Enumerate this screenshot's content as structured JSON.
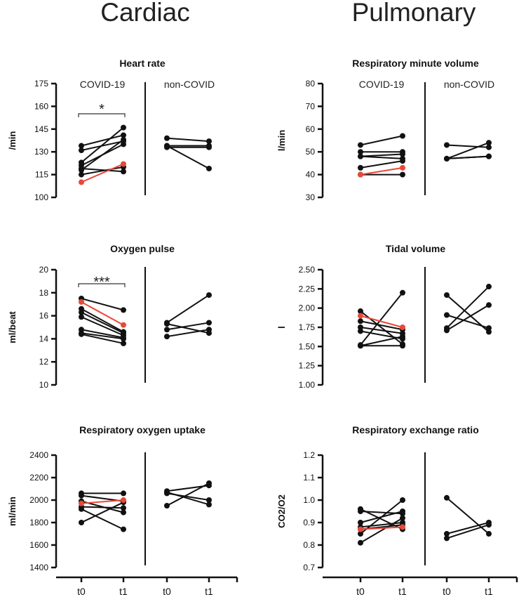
{
  "headers": {
    "left": "Cardiac",
    "right": "Pulmonary"
  },
  "groups": {
    "covid": "COVID-19",
    "noncovid": "non-COVID"
  },
  "time_labels": [
    "t0",
    "t1",
    "t0",
    "t1"
  ],
  "colors": {
    "line": "#111111",
    "highlight": "#e8493a"
  },
  "chart_data": [
    {
      "type": "line",
      "title": "Heart rate",
      "ylabel": "/min",
      "ylim": [
        100,
        175
      ],
      "yticks": [
        100,
        115,
        130,
        145,
        160,
        175
      ],
      "show_groups": true,
      "significance": {
        "label": "*",
        "groups": "COVID-19"
      },
      "covid": [
        [
          123,
          146
        ],
        [
          134,
          141
        ],
        [
          131,
          137
        ],
        [
          121,
          135
        ],
        [
          118,
          138
        ],
        [
          119,
          117
        ],
        [
          115,
          120
        ]
      ],
      "covid_highlight": [
        110,
        122
      ],
      "noncovid": [
        [
          139,
          137
        ],
        [
          134,
          134
        ],
        [
          133,
          133
        ],
        [
          134,
          119
        ]
      ]
    },
    {
      "type": "line",
      "title": "Respiratory minute volume",
      "ylabel": "l/min",
      "ylim": [
        30,
        80
      ],
      "yticks": [
        30,
        40,
        50,
        60,
        70,
        80
      ],
      "show_groups": true,
      "significance": null,
      "covid": [
        [
          53,
          57
        ],
        [
          50,
          50
        ],
        [
          48,
          49
        ],
        [
          48,
          47
        ],
        [
          43,
          46
        ],
        [
          40,
          40
        ]
      ],
      "covid_highlight": [
        40,
        43
      ],
      "noncovid": [
        [
          53,
          52
        ],
        [
          47,
          54
        ],
        [
          47,
          48
        ],
        [
          47,
          48
        ]
      ]
    },
    {
      "type": "line",
      "title": "Oxygen pulse",
      "ylabel": "ml/beat",
      "ylim": [
        10,
        20
      ],
      "yticks": [
        10,
        12,
        14,
        16,
        18,
        20
      ],
      "show_groups": false,
      "significance": {
        "label": "***",
        "groups": "COVID-19"
      },
      "covid": [
        [
          17.5,
          16.5
        ],
        [
          16.6,
          14.6
        ],
        [
          16.3,
          14.5
        ],
        [
          15.9,
          14.3
        ],
        [
          14.8,
          14.1
        ],
        [
          14.5,
          14.0
        ],
        [
          14.4,
          13.6
        ]
      ],
      "covid_highlight": [
        17.2,
        15.2
      ],
      "noncovid": [
        [
          15.4,
          17.8
        ],
        [
          15.3,
          14.5
        ],
        [
          14.8,
          15.4
        ],
        [
          14.2,
          14.8
        ]
      ]
    },
    {
      "type": "line",
      "title": "Tidal volume",
      "ylabel": "l",
      "ylim": [
        1.0,
        2.5
      ],
      "yticks": [
        1.0,
        1.25,
        1.5,
        1.75,
        2.0,
        2.25,
        2.5
      ],
      "ytick_labels": [
        "1.00",
        "1.25",
        "1.50",
        "1.75",
        "2.00",
        "2.25",
        "2.50"
      ],
      "show_groups": false,
      "significance": null,
      "covid": [
        [
          1.96,
          1.53
        ],
        [
          1.83,
          1.72
        ],
        [
          1.75,
          1.67
        ],
        [
          1.7,
          1.6
        ],
        [
          1.52,
          2.2
        ],
        [
          1.51,
          1.63
        ],
        [
          1.51,
          1.51
        ]
      ],
      "covid_highlight": [
        1.9,
        1.75
      ],
      "noncovid": [
        [
          2.17,
          1.69
        ],
        [
          1.91,
          1.74
        ],
        [
          1.74,
          2.28
        ],
        [
          1.71,
          2.04
        ]
      ]
    },
    {
      "type": "line",
      "title": "Respiratory oxygen uptake",
      "ylabel": "ml/min",
      "ylim": [
        1400,
        2400
      ],
      "yticks": [
        1400,
        1600,
        1800,
        2000,
        2200,
        2400
      ],
      "show_groups": false,
      "significance": null,
      "covid": [
        [
          2060,
          2060
        ],
        [
          2040,
          1990
        ],
        [
          1990,
          1890
        ],
        [
          1940,
          1930
        ],
        [
          1920,
          1740
        ],
        [
          1800,
          1980
        ]
      ],
      "covid_highlight": [
        1970,
        2000
      ],
      "noncovid": [
        [
          2080,
          2130
        ],
        [
          2070,
          1960
        ],
        [
          1950,
          2150
        ],
        [
          2060,
          2000
        ]
      ]
    },
    {
      "type": "line",
      "title": "Respiratory exchange ratio",
      "ylabel": "CO2/O2",
      "ylim": [
        0.7,
        1.2
      ],
      "yticks": [
        0.7,
        0.8,
        0.9,
        1.0,
        1.1,
        1.2
      ],
      "ytick_labels": [
        "0.7",
        "0.8",
        "0.9",
        "1.0",
        "1.1",
        "1.2"
      ],
      "show_groups": false,
      "significance": null,
      "covid": [
        [
          0.96,
          0.87
        ],
        [
          0.95,
          0.94
        ],
        [
          0.9,
          0.95
        ],
        [
          0.88,
          0.9
        ],
        [
          0.85,
          1.0
        ],
        [
          0.81,
          0.92
        ],
        [
          0.87,
          0.89
        ]
      ],
      "covid_highlight": [
        0.87,
        0.88
      ],
      "noncovid": [
        [
          1.01,
          0.85
        ],
        [
          0.85,
          0.9
        ],
        [
          0.83,
          0.89
        ]
      ]
    }
  ]
}
